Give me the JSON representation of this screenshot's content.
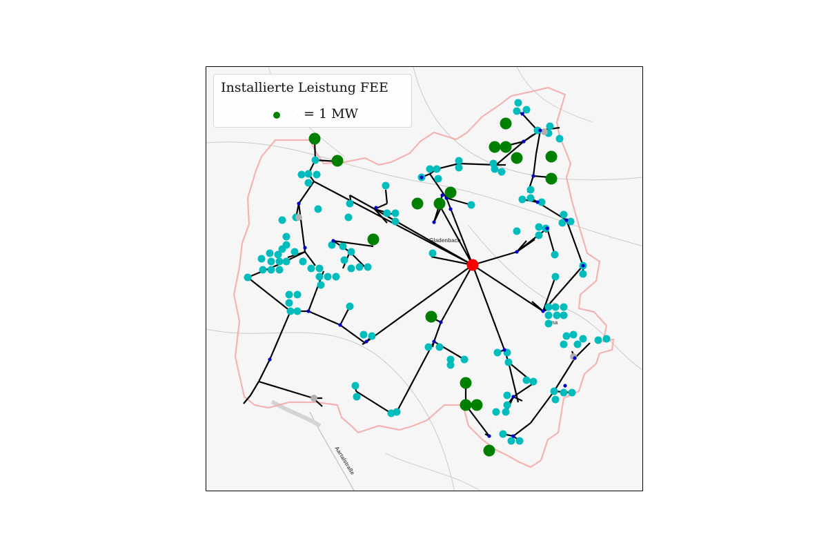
{
  "legend": {
    "title": "Installierte Leistung FEE",
    "entry_label": "= 1 MW",
    "entry_color": "#008000"
  },
  "map_labels": {
    "town_1": "Gladenbach",
    "town_2": "na",
    "road": "Aartalstraße"
  },
  "colors": {
    "substation": "#ff0000",
    "load_node": "#00bcbc",
    "junction": "#0000cc",
    "switch": "#b0b0b0",
    "generator": "#008000",
    "line": "#000000",
    "boundary": "#f4a6a6"
  }
}
